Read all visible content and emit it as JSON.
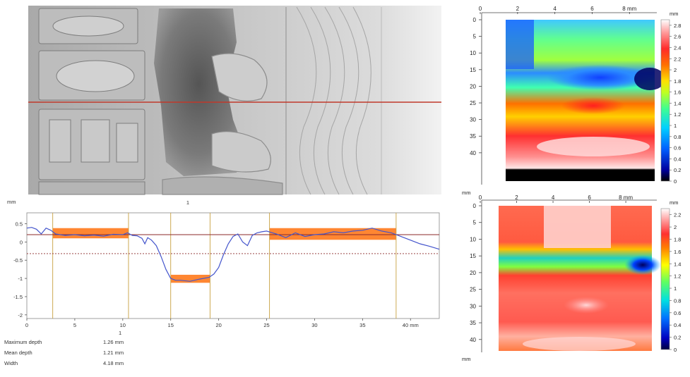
{
  "photo": {
    "marker_label": "1"
  },
  "chart_data": [
    {
      "type": "line",
      "ylabel": "mm",
      "xlabel": "",
      "x_unit_label": "40 mm",
      "xlim": [
        0,
        43
      ],
      "ylim": [
        -2.1,
        0.8
      ],
      "x_ticks": [
        0,
        5,
        10,
        15,
        20,
        25,
        30,
        35,
        40
      ],
      "x_tick_labels": [
        "0",
        "5",
        "10",
        "15",
        "20",
        "25",
        "30",
        "35",
        "40 mm"
      ],
      "y_ticks": [
        0.5,
        0,
        -0.5,
        -1,
        -1.5,
        -2
      ],
      "y_tick_labels": [
        "0.5",
        "0",
        "-0.5",
        "-1",
        "-1.5",
        "-2"
      ],
      "series": [
        {
          "x": [
            0,
            0.5,
            1,
            1.5,
            2,
            2.5,
            3,
            4,
            5,
            6,
            7,
            8,
            9,
            10,
            10.5,
            11,
            11.5,
            12,
            12.3,
            12.6,
            13,
            13.5,
            14,
            14.5,
            15,
            15.5,
            16,
            17,
            18,
            19,
            19.5,
            20,
            20.5,
            21,
            21.5,
            22,
            22.5,
            23,
            23.5,
            24,
            24.5,
            25,
            26,
            27,
            28,
            29,
            30,
            31,
            32,
            33,
            34,
            35,
            36,
            37,
            38,
            38.5,
            39,
            40,
            41,
            42,
            43
          ],
          "y": [
            0.38,
            0.4,
            0.35,
            0.22,
            0.38,
            0.32,
            0.22,
            0.18,
            0.2,
            0.17,
            0.19,
            0.16,
            0.21,
            0.2,
            0.25,
            0.18,
            0.17,
            0.1,
            -0.05,
            0.12,
            0.05,
            -0.1,
            -0.4,
            -0.75,
            -1.0,
            -1.05,
            -1.05,
            -1.08,
            -1.02,
            -0.97,
            -0.88,
            -0.7,
            -0.35,
            -0.05,
            0.15,
            0.22,
            0.0,
            -0.1,
            0.18,
            0.25,
            0.28,
            0.3,
            0.22,
            0.12,
            0.25,
            0.15,
            0.2,
            0.22,
            0.28,
            0.25,
            0.3,
            0.32,
            0.38,
            0.3,
            0.25,
            0.2,
            0.15,
            0.05,
            -0.05,
            -0.12,
            -0.2
          ]
        }
      ],
      "reference_lines": {
        "solid_y": 0.2,
        "dashed_y": -0.32
      },
      "orange_bands": [
        {
          "x0": 2.7,
          "x1": 10.6,
          "y0": 0.1,
          "y1": 0.38
        },
        {
          "x0": 15.0,
          "x1": 19.1,
          "y0": -1.12,
          "y1": -0.9
        },
        {
          "x0": 25.3,
          "x1": 38.5,
          "y0": 0.06,
          "y1": 0.38
        }
      ],
      "vertical_lines_x": [
        2.7,
        10.6,
        15.0,
        19.1,
        25.3,
        38.5
      ],
      "marker_label": "1"
    },
    {
      "type": "heatmap",
      "x_ticks": [
        0,
        2,
        4,
        6,
        8
      ],
      "x_tick_labels": [
        "0",
        "2",
        "4",
        "6",
        "8 mm"
      ],
      "y_ticks": [
        0,
        5,
        10,
        15,
        20,
        25,
        30,
        35,
        40
      ],
      "y_tick_labels": [
        "0",
        "5",
        "10",
        "15",
        "20",
        "25",
        "30",
        "35",
        "40"
      ],
      "y_axis_unit": "mm",
      "colorbar_unit": "mm",
      "colorbar_ticks": [
        "0",
        "0.2",
        "0.4",
        "0.6",
        "0.8",
        "1",
        "1.2",
        "1.4",
        "1.6",
        "1.8",
        "2",
        "2.2",
        "2.4",
        "2.6",
        "2.8"
      ],
      "colorbar_range": [
        0,
        2.9
      ],
      "colors": [
        "#000080",
        "#0000ff",
        "#0080ff",
        "#00e0ff",
        "#40ff80",
        "#c0ff00",
        "#ffff00",
        "#ff8000",
        "#ff2020",
        "#ff8080",
        "#ffffff"
      ]
    },
    {
      "type": "heatmap",
      "x_ticks": [
        0,
        2,
        4,
        6,
        8
      ],
      "x_tick_labels": [
        "0",
        "2",
        "4",
        "6",
        "8 mm"
      ],
      "y_ticks": [
        0,
        5,
        10,
        15,
        20,
        25,
        30,
        35,
        40
      ],
      "y_tick_labels": [
        "0",
        "5",
        "10",
        "15",
        "20",
        "25",
        "30",
        "35",
        "40"
      ],
      "y_axis_unit": "mm",
      "colorbar_unit": "mm",
      "colorbar_ticks": [
        "0",
        "0.2",
        "0.4",
        "0.6",
        "0.8",
        "1",
        "1.2",
        "1.4",
        "1.6",
        "1.8",
        "2",
        "2.2"
      ],
      "colorbar_range": [
        0,
        2.3
      ]
    }
  ],
  "stats": {
    "column_header": "1",
    "rows": [
      {
        "label": "Maximum depth",
        "value": "1.26 mm"
      },
      {
        "label": "Mean depth",
        "value": "1.21 mm"
      },
      {
        "label": "Width",
        "value": "4.18 mm"
      }
    ]
  }
}
